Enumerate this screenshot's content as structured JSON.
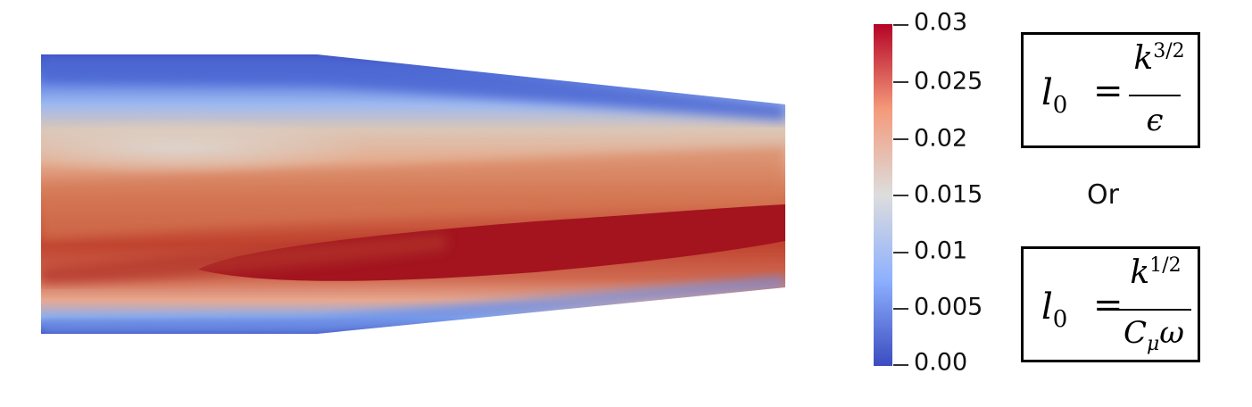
{
  "colorbar": {
    "min": 0.0,
    "max": 0.03,
    "tick_labels": [
      "0.03",
      "0.025",
      "0.02",
      "0.015",
      "0.01",
      "0.005",
      "0.00"
    ],
    "tick_values": [
      0.03,
      0.025,
      0.02,
      0.015,
      0.01,
      0.005,
      0.0
    ],
    "colors": {
      "low": "#3b4cc0",
      "mid": "#dddddd",
      "high": "#b40426"
    }
  },
  "equations": [
    {
      "lhs": "l",
      "lhs_sub": "0",
      "eq": "=",
      "num": "k",
      "num_sup": "3/2",
      "den": "ϵ",
      "den_sub": ""
    },
    {
      "lhs": "l",
      "lhs_sub": "0",
      "eq": "=",
      "num": "k",
      "num_sup": "1/2",
      "den": "C",
      "den_sub": "μ",
      "den_tail": "ω"
    }
  ],
  "or_label": "Or"
}
